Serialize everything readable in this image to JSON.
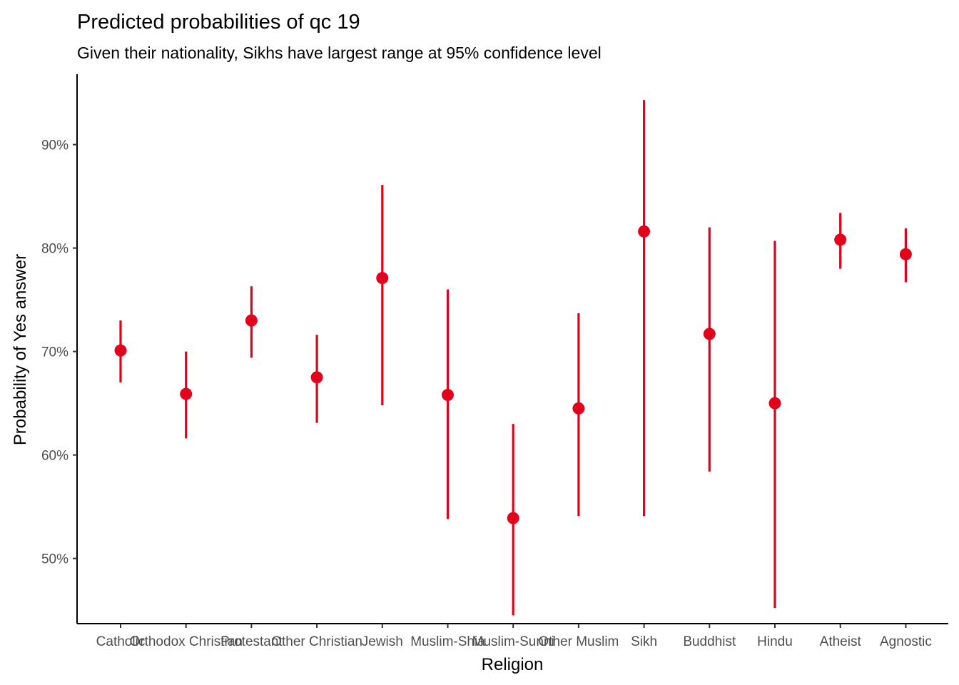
{
  "chart_data": {
    "type": "scatter",
    "title": "Predicted probabilities of qc 19",
    "subtitle": "Given their nationality, Sikhs have largest range at 95% confidence level",
    "xlabel": "Religion",
    "ylabel": "Probability of Yes answer",
    "y_ticks": [
      "50%",
      "60%",
      "70%",
      "80%",
      "90%"
    ],
    "y_tick_values": [
      0.5,
      0.6,
      0.7,
      0.8,
      0.9
    ],
    "ylim": [
      0.437,
      0.968
    ],
    "grid": false,
    "color": "#e2001a",
    "categories": [
      "Catholic",
      "Orthodox Christian",
      "Protestant",
      "Other Christian",
      "Jewish",
      "Muslim-Shia",
      "Muslim-Sunni",
      "Other Muslim",
      "Sikh",
      "Buddhist",
      "Hindu",
      "Atheist",
      "Agnostic"
    ],
    "values": [
      0.701,
      0.659,
      0.73,
      0.675,
      0.771,
      0.658,
      0.539,
      0.645,
      0.816,
      0.717,
      0.65,
      0.808,
      0.794
    ],
    "lower": [
      0.67,
      0.616,
      0.694,
      0.631,
      0.648,
      0.538,
      0.445,
      0.541,
      0.541,
      0.584,
      0.452,
      0.78,
      0.767
    ],
    "upper": [
      0.73,
      0.7,
      0.763,
      0.716,
      0.861,
      0.76,
      0.63,
      0.737,
      0.943,
      0.82,
      0.807,
      0.834,
      0.819
    ]
  }
}
